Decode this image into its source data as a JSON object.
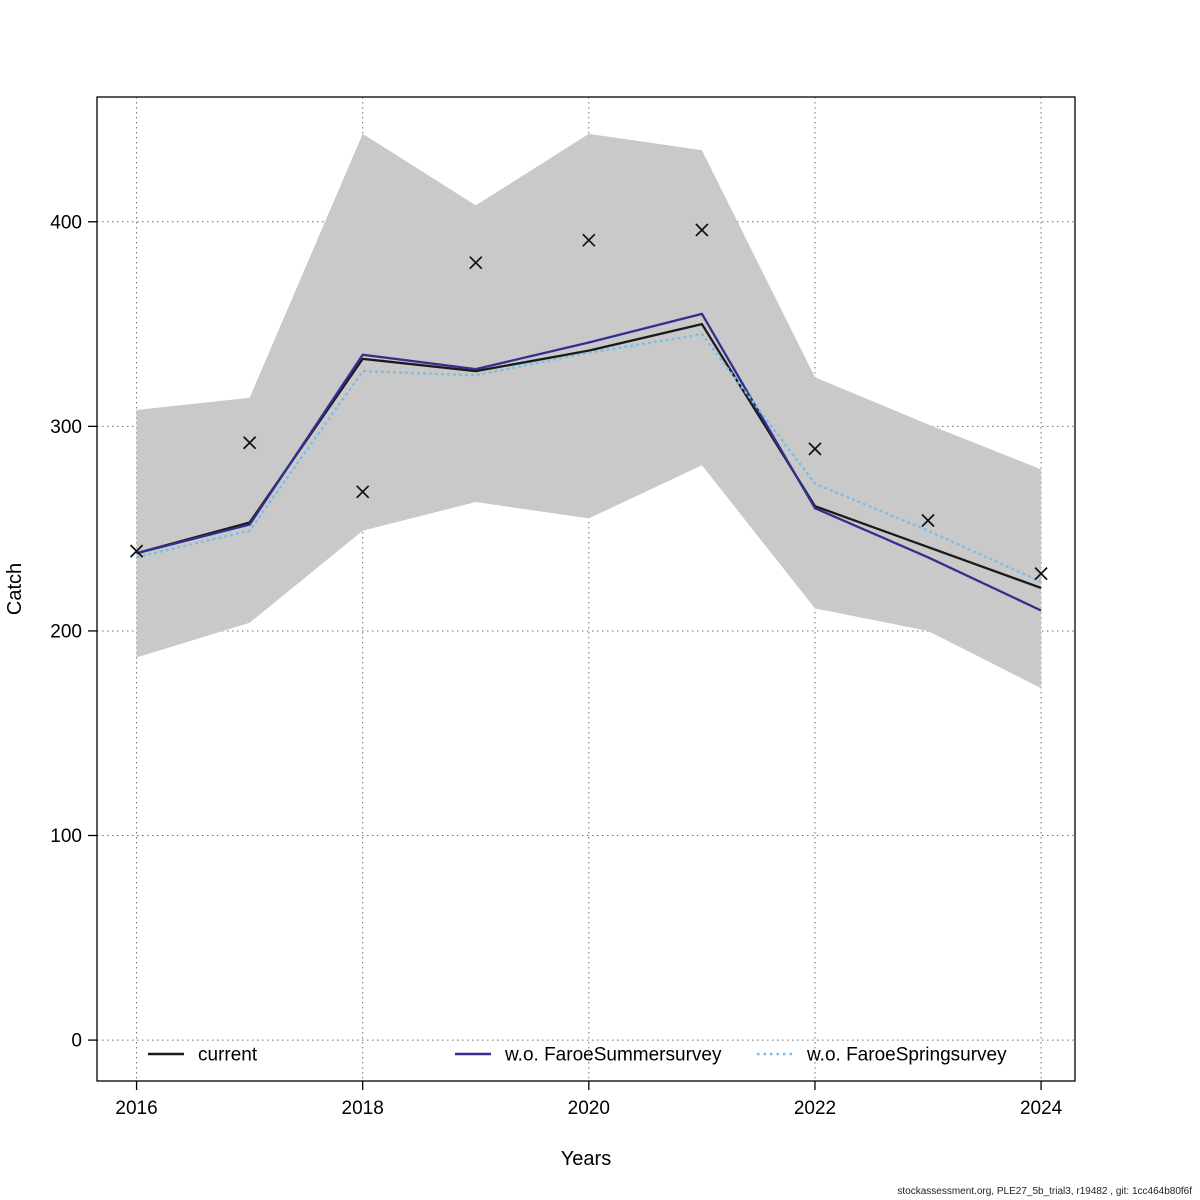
{
  "footer": {
    "text": "stockassessment.org, PLE27_5b_trial3, r19482 , git: 1cc464b80f6f"
  },
  "chart_data": {
    "type": "line",
    "title": "",
    "xlabel": "Years",
    "ylabel": "Catch",
    "x": [
      2016,
      2017,
      2018,
      2019,
      2020,
      2021,
      2022,
      2023,
      2024
    ],
    "xticks": [
      2016,
      2018,
      2020,
      2022,
      2024
    ],
    "yticks": [
      0,
      100,
      200,
      300,
      400
    ],
    "xlim": [
      2015.65,
      2024.3
    ],
    "ylim": [
      -20,
      461
    ],
    "grid": true,
    "legend_position": "bottom-inside-horizontal",
    "band": {
      "name": "confidence-interval",
      "color": "#c9c9c9",
      "upper": [
        308,
        314,
        443,
        408,
        443,
        435,
        324,
        301,
        279
      ],
      "lower": [
        187,
        204,
        249,
        263,
        255,
        281,
        211,
        200,
        172
      ]
    },
    "series": [
      {
        "name": "current",
        "color": "#1a1a1a",
        "linetype": "solid",
        "values": [
          238,
          253,
          333,
          327,
          337,
          350,
          261,
          241,
          221
        ]
      },
      {
        "name": "w.o. FaroeSummersurvey",
        "color": "#332f8f",
        "linetype": "solid",
        "values": [
          238,
          252,
          335,
          328,
          341,
          355,
          260,
          236,
          210
        ]
      },
      {
        "name": "w.o. FaroeSpringsurvey",
        "color": "#79bde8",
        "linetype": "dotted",
        "values": [
          236,
          249,
          327,
          325,
          336,
          345,
          272,
          249,
          224
        ]
      }
    ],
    "observations": {
      "name": "observed-catch",
      "marker": "x",
      "color": "#111111",
      "values": [
        239,
        292,
        268,
        380,
        391,
        396,
        289,
        254,
        228
      ]
    }
  }
}
